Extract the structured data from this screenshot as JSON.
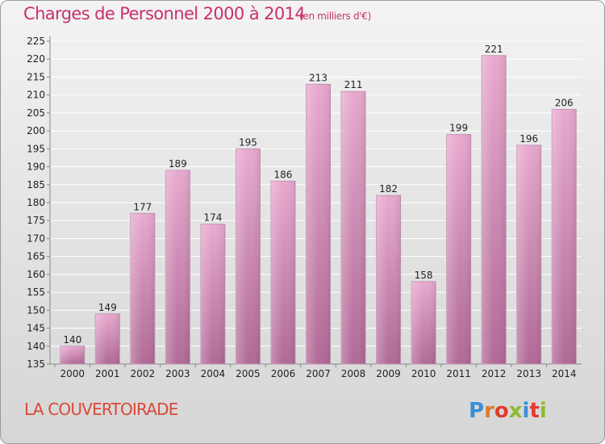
{
  "header": {
    "title": "Charges de Personnel 2000 à 2014",
    "subtitle": "(en milliers d'€)"
  },
  "footer": {
    "town": "LA COUVERTOIRADE",
    "logo_text": "Proxiti"
  },
  "colors": {
    "title": "#c8306e",
    "town": "#d84a3a",
    "bar_top": "#e8a9cf",
    "bar_bottom": "#b06a96",
    "logo": [
      "#3a8fd6",
      "#e07a28",
      "#e13c2f",
      "#8dbb2f",
      "#3a8fd6",
      "#e13c2f",
      "#8dbb2f"
    ]
  },
  "chart_data": {
    "type": "bar",
    "title": "Charges de Personnel 2000 à 2014",
    "subtitle": "(en milliers d'€)",
    "xlabel": "",
    "ylabel": "",
    "ylim": [
      135,
      225
    ],
    "ytick_step": 5,
    "grid": true,
    "categories": [
      "2000",
      "2001",
      "2002",
      "2003",
      "2004",
      "2005",
      "2006",
      "2007",
      "2008",
      "2009",
      "2010",
      "2011",
      "2012",
      "2013",
      "2014"
    ],
    "values": [
      140,
      149,
      177,
      189,
      174,
      195,
      186,
      213,
      211,
      182,
      158,
      199,
      221,
      196,
      206
    ]
  }
}
